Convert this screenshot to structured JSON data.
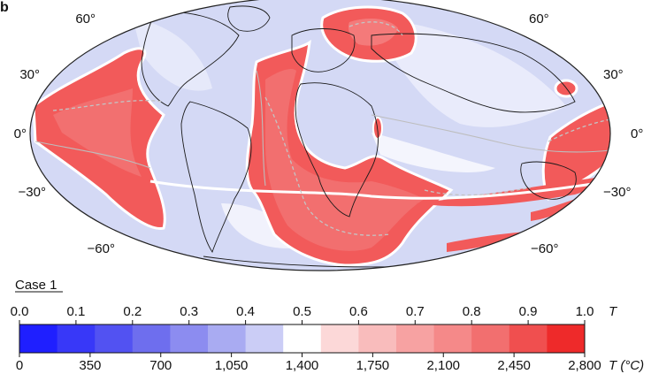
{
  "panel_label": "b",
  "case_label": "Case 1",
  "map": {
    "projection": "Mollweide",
    "background_color": "#d4d9f5",
    "hot_color": "#f25a5a",
    "hot_light_color": "#f7a7a7",
    "coastline_color": "#1a1a1a",
    "boundary_color": "#b8b8b8",
    "latitude_labels_left": [
      "60°",
      "30°",
      "0°",
      "−30°",
      "−60°"
    ],
    "latitude_labels_right": [
      "60°",
      "30°",
      "0°",
      "−30°",
      "−60°"
    ]
  },
  "colorbar": {
    "colors": [
      "#1f1fff",
      "#3838f8",
      "#5252f2",
      "#6e6eee",
      "#8c8cf0",
      "#a9abf2",
      "#cbcdf6",
      "#ffffff",
      "#fcd8d8",
      "#f9bcbc",
      "#f7a2a2",
      "#f58989",
      "#f26f6f",
      "#f04f4f",
      "#ee2a2a"
    ],
    "top_ticks": [
      "0.0",
      "0.1",
      "0.2",
      "0.3",
      "0.4",
      "0.5",
      "0.6",
      "0.7",
      "0.8",
      "0.9",
      "1.0"
    ],
    "top_unit": "T",
    "bottom_ticks": [
      "0",
      "350",
      "700",
      "1,050",
      "1,400",
      "1,750",
      "2,100",
      "2,450",
      "2,800"
    ],
    "bottom_unit": "T (°C)"
  }
}
